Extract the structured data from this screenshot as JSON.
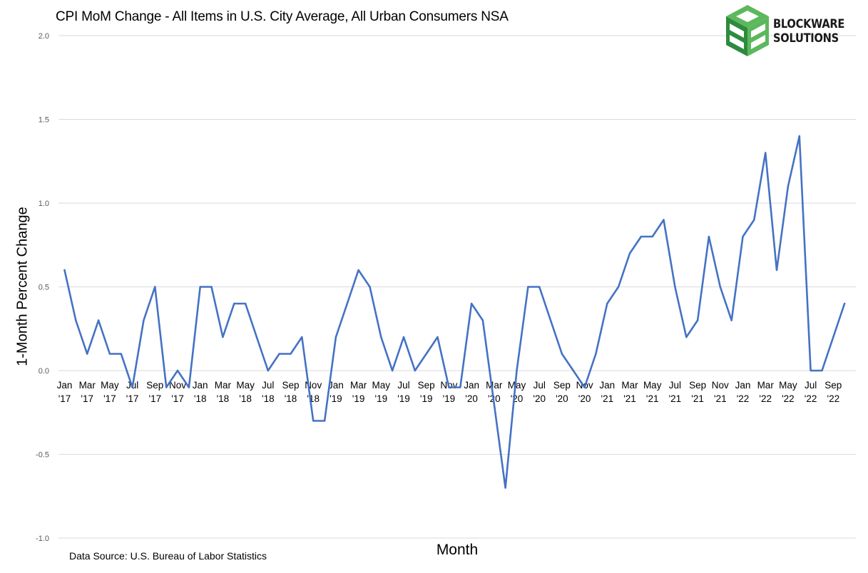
{
  "chart_data": {
    "type": "line",
    "title": "CPI MoM Change - All Items in U.S. City Average, All Urban Consumers NSA",
    "xlabel": "Month",
    "ylabel": "1-Month Percent Change",
    "ylim": [
      -1.0,
      2.0
    ],
    "yticks": [
      "2.0",
      "1.5",
      "1.0",
      "0.5",
      "0.0",
      "-0.5",
      "-1.0"
    ],
    "ytick_values": [
      2.0,
      1.5,
      1.0,
      0.5,
      0.0,
      -0.5,
      -1.0
    ],
    "grid": true,
    "legend": "none",
    "x_tick_labels": [
      {
        "month": "Jan",
        "year": "'17"
      },
      {
        "month": "Mar",
        "year": "'17"
      },
      {
        "month": "May",
        "year": "'17"
      },
      {
        "month": "Jul",
        "year": "'17"
      },
      {
        "month": "Sep",
        "year": "'17"
      },
      {
        "month": "Nov",
        "year": "'17"
      },
      {
        "month": "Jan",
        "year": "'18"
      },
      {
        "month": "Mar",
        "year": "'18"
      },
      {
        "month": "May",
        "year": "'18"
      },
      {
        "month": "Jul",
        "year": "'18"
      },
      {
        "month": "Sep",
        "year": "'18"
      },
      {
        "month": "Nov",
        "year": "'18"
      },
      {
        "month": "Jan",
        "year": "'19"
      },
      {
        "month": "Mar",
        "year": "'19"
      },
      {
        "month": "May",
        "year": "'19"
      },
      {
        "month": "Jul",
        "year": "'19"
      },
      {
        "month": "Sep",
        "year": "'19"
      },
      {
        "month": "Nov",
        "year": "'19"
      },
      {
        "month": "Jan",
        "year": "'20"
      },
      {
        "month": "Mar",
        "year": "'20"
      },
      {
        "month": "May",
        "year": "'20"
      },
      {
        "month": "Jul",
        "year": "'20"
      },
      {
        "month": "Sep",
        "year": "'20"
      },
      {
        "month": "Nov",
        "year": "'20"
      },
      {
        "month": "Jan",
        "year": "'21"
      },
      {
        "month": "Mar",
        "year": "'21"
      },
      {
        "month": "May",
        "year": "'21"
      },
      {
        "month": "Jul",
        "year": "'21"
      },
      {
        "month": "Sep",
        "year": "'21"
      },
      {
        "month": "Nov",
        "year": "'21"
      },
      {
        "month": "Jan",
        "year": "'22"
      },
      {
        "month": "Mar",
        "year": "'22"
      },
      {
        "month": "May",
        "year": "'22"
      },
      {
        "month": "Jul",
        "year": "'22"
      },
      {
        "month": "Sep",
        "year": "'22"
      }
    ],
    "series": [
      {
        "color": "#4472c4",
        "values": [
          0.6,
          0.3,
          0.1,
          0.3,
          0.1,
          0.1,
          -0.1,
          0.3,
          0.5,
          -0.1,
          0.0,
          -0.1,
          0.5,
          0.5,
          0.2,
          0.4,
          0.4,
          0.2,
          0.0,
          0.1,
          0.1,
          0.2,
          -0.3,
          -0.3,
          0.2,
          0.4,
          0.6,
          0.5,
          0.2,
          0.0,
          0.2,
          0.0,
          0.1,
          0.2,
          -0.1,
          -0.1,
          0.4,
          0.3,
          -0.2,
          -0.7,
          0.0,
          0.5,
          0.5,
          0.3,
          0.1,
          0.0,
          -0.1,
          0.1,
          0.4,
          0.5,
          0.7,
          0.8,
          0.8,
          0.9,
          0.5,
          0.2,
          0.3,
          0.8,
          0.5,
          0.3,
          0.8,
          0.9,
          1.3,
          0.6,
          1.1,
          1.4,
          0.0,
          0.0,
          0.2,
          0.4
        ]
      }
    ]
  },
  "source_note": "Data Source: U.S. Bureau of Labor Statistics",
  "logo": {
    "line1": "BLOCKWARE",
    "line2": "SOLUTIONS",
    "color_light": "#5cb85c",
    "color_dark": "#2e8b3e"
  }
}
